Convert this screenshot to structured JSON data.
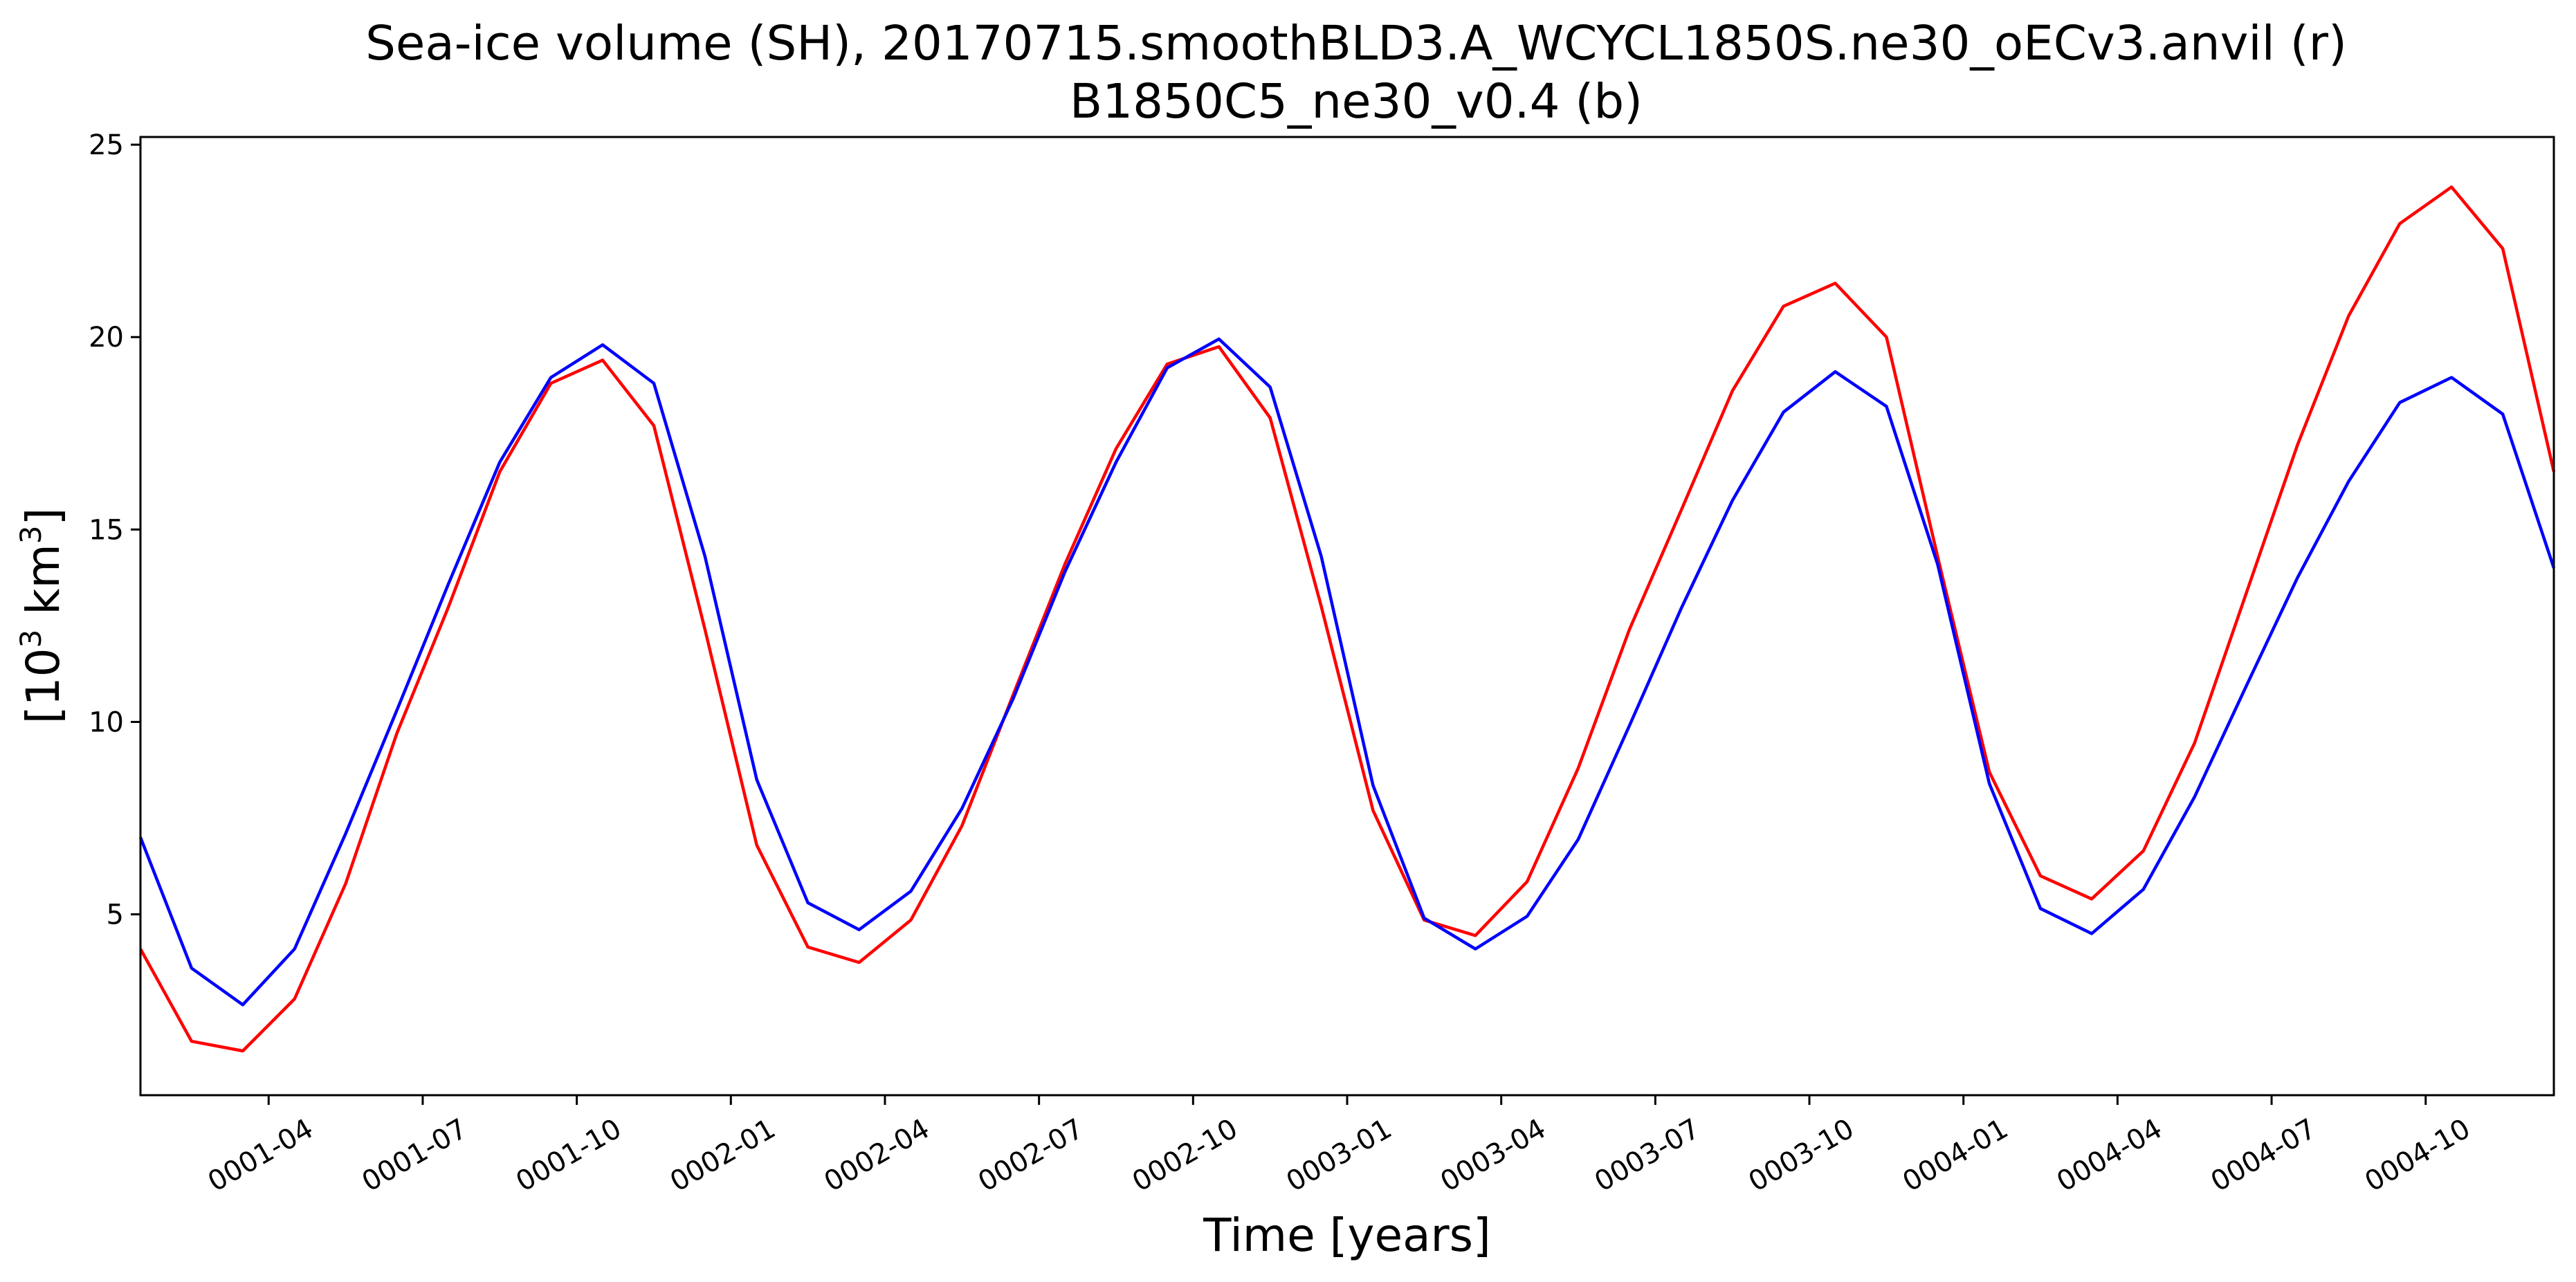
{
  "chart_data": {
    "type": "line",
    "title": "Sea-ice volume (SH), 20170715.smoothBLD3.A_WCYCL1850S.ne30_oECv3.anvil (r)",
    "subtitle": "B1850C5_ne30_v0.4 (b)",
    "xlabel": "Time [years]",
    "ylabel_base": "[10",
    "ylabel_sup1": "3",
    "ylabel_mid": " km",
    "ylabel_sup2": "3",
    "ylabel_end": "]",
    "xlim": [
      0.042,
      3.958
    ],
    "ylim": [
      0.3,
      25.2
    ],
    "x_tick_values": [
      0.25,
      0.5,
      0.75,
      1.0,
      1.25,
      1.5,
      1.75,
      2.0,
      2.25,
      2.5,
      2.75,
      3.0,
      3.25,
      3.5,
      3.75
    ],
    "x_tick_labels": [
      "0001-04",
      "0001-07",
      "0001-10",
      "0002-01",
      "0002-04",
      "0002-07",
      "0002-10",
      "0003-01",
      "0003-04",
      "0003-07",
      "0003-10",
      "0004-01",
      "0004-04",
      "0004-07",
      "0004-10"
    ],
    "y_ticks": [
      5,
      10,
      15,
      20,
      25
    ],
    "grid": false,
    "x": [
      0.042,
      0.125,
      0.208,
      0.292,
      0.375,
      0.458,
      0.542,
      0.625,
      0.708,
      0.792,
      0.875,
      0.958,
      1.042,
      1.125,
      1.208,
      1.292,
      1.375,
      1.458,
      1.542,
      1.625,
      1.708,
      1.792,
      1.875,
      1.958,
      2.042,
      2.125,
      2.208,
      2.292,
      2.375,
      2.458,
      2.542,
      2.625,
      2.708,
      2.792,
      2.875,
      2.958,
      3.042,
      3.125,
      3.208,
      3.292,
      3.375,
      3.458,
      3.542,
      3.625,
      3.708,
      3.792,
      3.875,
      3.958
    ],
    "series": [
      {
        "color": "#ff0000",
        "values": [
          4.1,
          1.7,
          1.45,
          2.8,
          5.8,
          9.7,
          13.0,
          16.5,
          18.8,
          19.4,
          17.7,
          12.4,
          6.8,
          4.15,
          3.75,
          4.85,
          7.3,
          10.7,
          14.1,
          17.1,
          19.3,
          19.75,
          17.9,
          13.0,
          7.7,
          4.85,
          4.45,
          5.85,
          8.8,
          12.4,
          15.5,
          18.6,
          20.8,
          21.4,
          20.0,
          14.3,
          8.7,
          6.0,
          5.4,
          6.65,
          9.45,
          13.3,
          17.2,
          20.55,
          22.95,
          23.9,
          22.3,
          16.5
        ]
      },
      {
        "color": "#0000ff",
        "values": [
          7.0,
          3.6,
          2.65,
          4.1,
          7.1,
          10.3,
          13.6,
          16.75,
          18.95,
          19.8,
          18.8,
          14.3,
          8.5,
          5.3,
          4.6,
          5.6,
          7.75,
          10.6,
          13.9,
          16.75,
          19.2,
          19.95,
          18.7,
          14.3,
          8.35,
          4.9,
          4.1,
          4.95,
          6.95,
          9.9,
          12.95,
          15.75,
          18.05,
          19.1,
          18.2,
          14.1,
          8.4,
          5.15,
          4.5,
          5.65,
          8.05,
          10.9,
          13.75,
          16.25,
          18.3,
          18.95,
          18.0,
          14.0
        ]
      }
    ]
  }
}
